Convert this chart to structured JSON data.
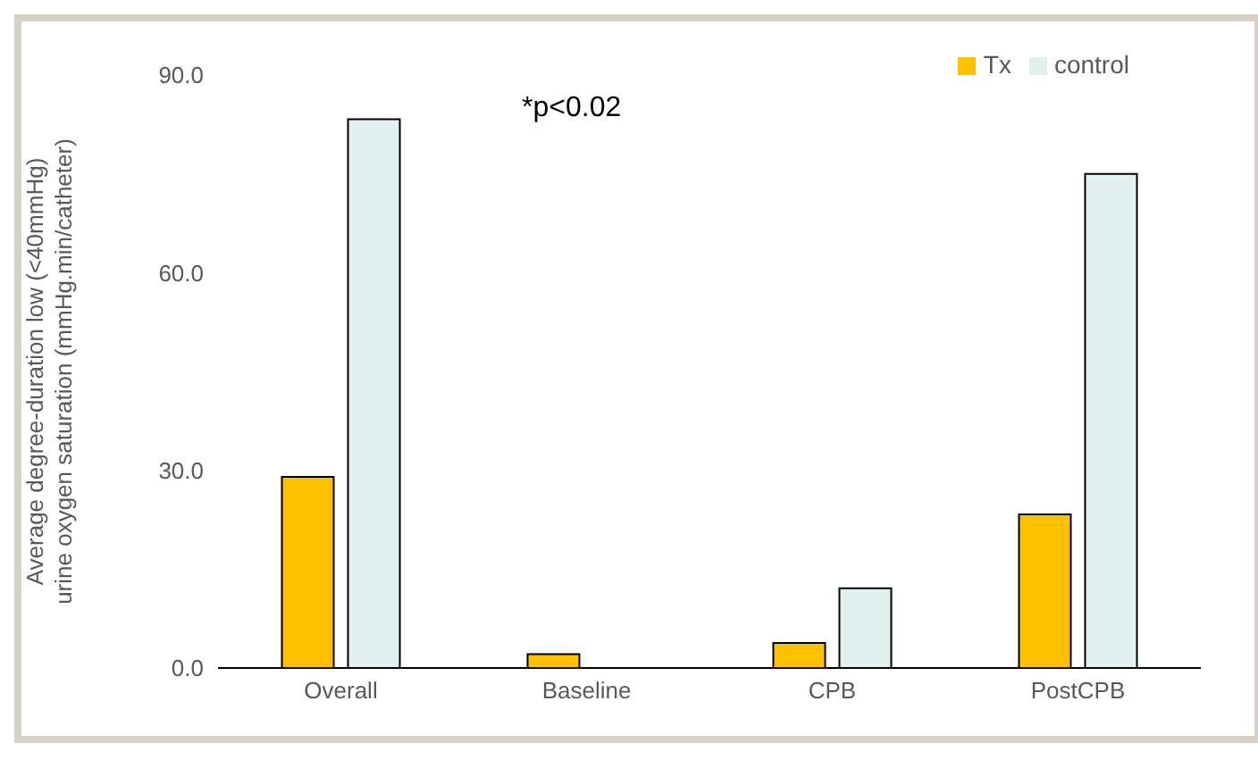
{
  "chart_data": {
    "type": "bar",
    "ylabel": "Average degree-duration low (<40mmHg)\nurine oxygen saturation (mmHg.min/catheter)",
    "categories": [
      "Overall",
      "Baseline",
      "CPB",
      "PostCPB"
    ],
    "series": [
      {
        "name": "Tx",
        "color": "#ffc000",
        "values": [
          29.0,
          2.1,
          3.8,
          23.3
        ]
      },
      {
        "name": "control",
        "color": "#e2f0f0",
        "values": [
          83.3,
          0,
          12.1,
          75.0
        ]
      }
    ],
    "ylim": [
      0,
      90
    ],
    "yticks": [
      {
        "value": 0,
        "label": "0.0"
      },
      {
        "value": 30,
        "label": "30.0"
      },
      {
        "value": 60,
        "label": "60.0"
      },
      {
        "value": 90,
        "label": "90.0"
      }
    ],
    "grid": false,
    "legend": "top right",
    "annotations": [
      "*p<0.02"
    ]
  }
}
